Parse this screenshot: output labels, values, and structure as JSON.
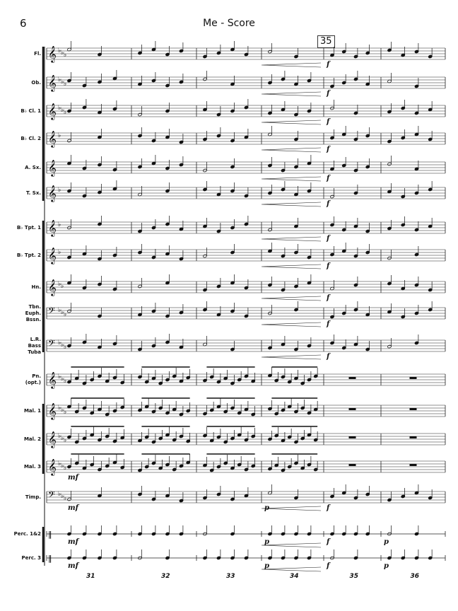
{
  "header": {
    "page_number": "6",
    "title": "Me - Score",
    "rehearsal_mark": "35"
  },
  "measure_numbers": [
    "31",
    "32",
    "33",
    "34",
    "35",
    "36"
  ],
  "staves": [
    {
      "label": "Fl.",
      "clef": "treble",
      "dynamics": [
        {
          "measure": 4,
          "text": "f"
        }
      ]
    },
    {
      "label": "Ob.",
      "clef": "treble",
      "dynamics": [
        {
          "measure": 4,
          "text": "f"
        }
      ]
    },
    {
      "label": "B♭ Cl. 1",
      "clef": "treble",
      "dynamics": [
        {
          "measure": 4,
          "text": "f"
        }
      ]
    },
    {
      "label": "B♭ Cl. 2",
      "clef": "treble",
      "dynamics": [
        {
          "measure": 4,
          "text": "f"
        }
      ]
    },
    {
      "label": "A. Sx.",
      "clef": "treble",
      "dynamics": [
        {
          "measure": 4,
          "text": "f"
        }
      ]
    },
    {
      "label": "T. Sx.",
      "clef": "treble",
      "dynamics": [
        {
          "measure": 4,
          "text": "f"
        }
      ]
    },
    {
      "label": "B♭ Tpt. 1",
      "clef": "treble",
      "dynamics": [
        {
          "measure": 4,
          "text": "f"
        }
      ]
    },
    {
      "label": "B♭ Tpt. 2",
      "clef": "treble",
      "dynamics": [
        {
          "measure": 4,
          "text": "f"
        }
      ]
    },
    {
      "label": "Hn.",
      "clef": "treble",
      "dynamics": [
        {
          "measure": 4,
          "text": "f"
        }
      ]
    },
    {
      "label": "Tbn.\nEuph.\nBssn.",
      "clef": "bass",
      "dynamics": [
        {
          "measure": 4,
          "text": "f"
        }
      ]
    },
    {
      "label": "L.R.\nBass\nTuba",
      "clef": "bass",
      "dynamics": [
        {
          "measure": 4,
          "text": "f"
        }
      ]
    },
    {
      "label": "Pn.\n(opt.)",
      "clef": "treble",
      "dynamics": []
    },
    {
      "label": "Mal. 1",
      "clef": "treble",
      "dynamics": []
    },
    {
      "label": "Mal. 2",
      "clef": "treble",
      "dynamics": []
    },
    {
      "label": "Mal. 3",
      "clef": "treble",
      "dynamics": [
        {
          "measure": 0,
          "text": "mf"
        }
      ]
    },
    {
      "label": "Timp.",
      "clef": "bass",
      "dynamics": [
        {
          "measure": 0,
          "text": "mf"
        },
        {
          "measure": 3,
          "text": "p"
        },
        {
          "measure": 4,
          "text": "f"
        }
      ]
    },
    {
      "label": "Perc. 1&2",
      "clef": "perc",
      "dynamics": [
        {
          "measure": 0,
          "text": "mf"
        },
        {
          "measure": 3,
          "text": "p"
        },
        {
          "measure": 4,
          "text": "f"
        },
        {
          "measure": 5,
          "text": "p"
        }
      ]
    },
    {
      "label": "Perc. 3",
      "clef": "perc",
      "dynamics": [
        {
          "measure": 0,
          "text": "mf"
        },
        {
          "measure": 3,
          "text": "p"
        },
        {
          "measure": 4,
          "text": "f"
        },
        {
          "measure": 5,
          "text": "p"
        }
      ]
    }
  ]
}
